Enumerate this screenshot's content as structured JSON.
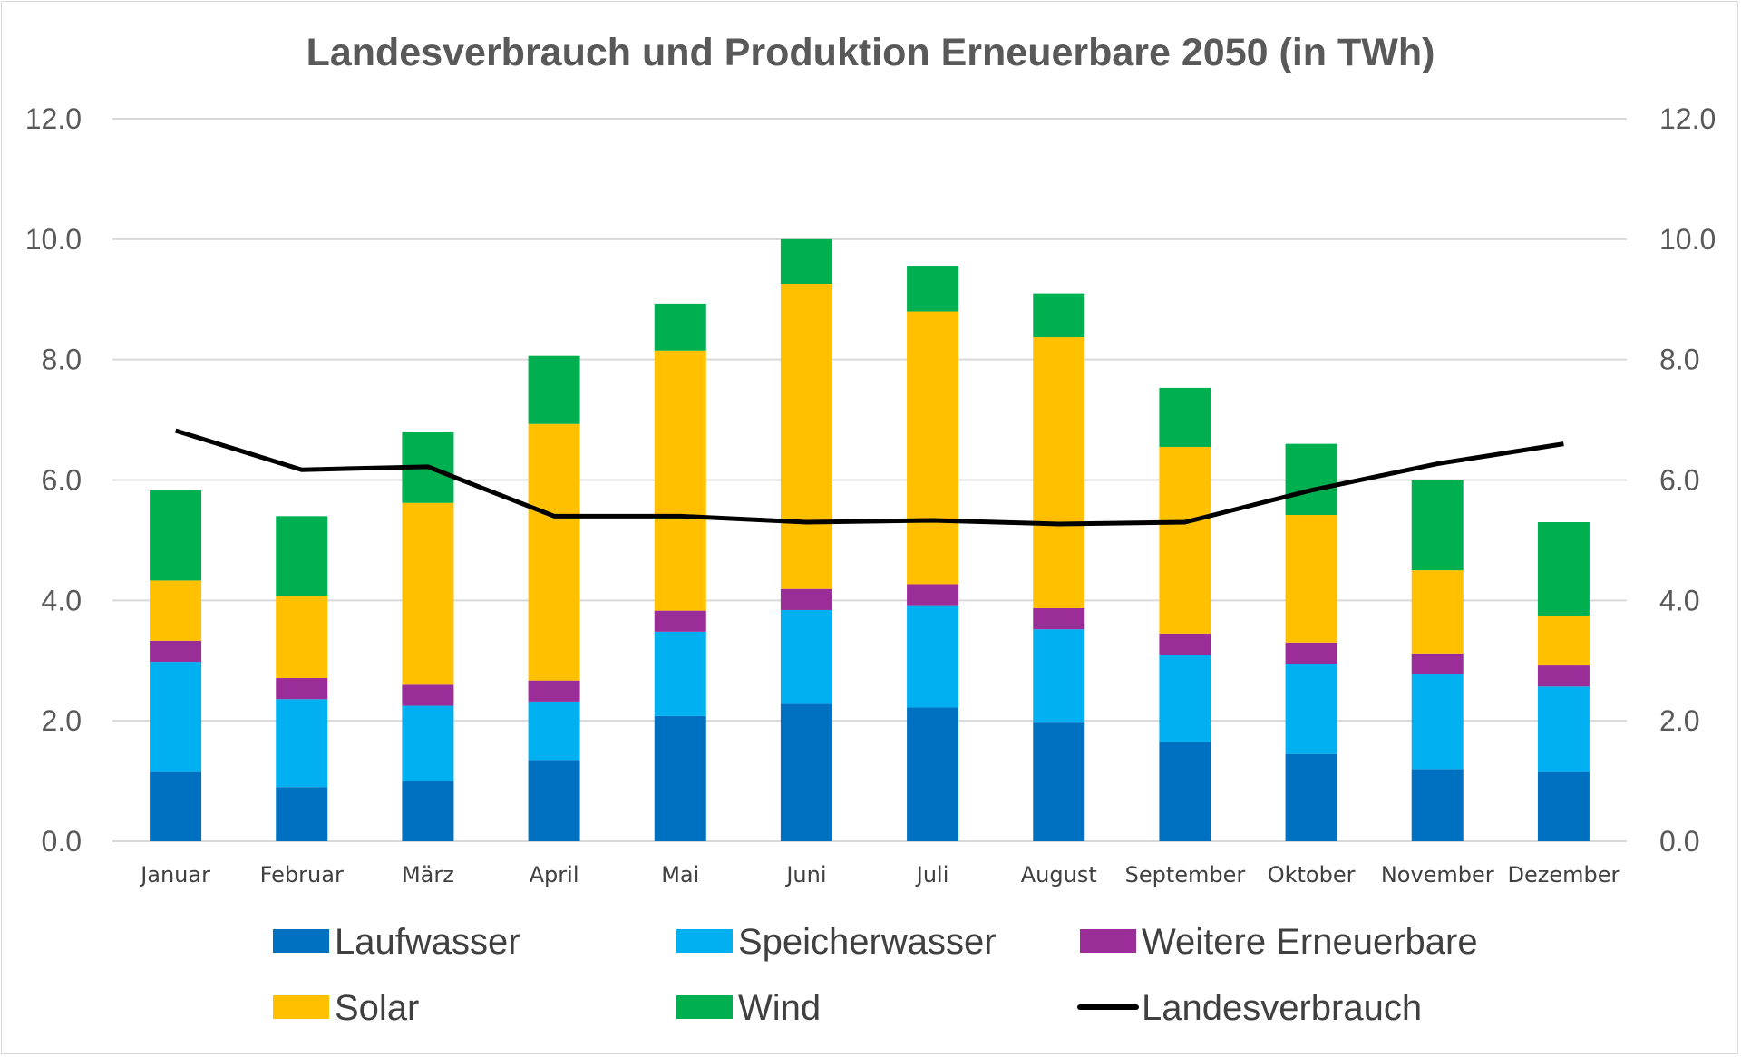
{
  "chart_data": {
    "type": "bar",
    "stacked": true,
    "title": "Landesverbrauch und Produktion Erneuerbare 2050 (in TWh)",
    "categories": [
      "Januar",
      "Februar",
      "März",
      "April",
      "Mai",
      "Juni",
      "Juli",
      "August",
      "September",
      "Oktober",
      "November",
      "Dezember"
    ],
    "ylim": [
      0,
      12
    ],
    "yticks": [
      "0.0",
      "2.0",
      "4.0",
      "6.0",
      "8.0",
      "10.0",
      "12.0"
    ],
    "secondary_ylim": [
      0,
      12
    ],
    "secondary_yticks": [
      "0.0",
      "2.0",
      "4.0",
      "6.0",
      "8.0",
      "10.0",
      "12.0"
    ],
    "grid": true,
    "legend_position": "bottom",
    "series": [
      {
        "name": "Laufwasser",
        "type": "bar",
        "color": "#0070C0",
        "values": [
          1.15,
          0.9,
          1.0,
          1.35,
          2.08,
          2.28,
          2.22,
          1.97,
          1.65,
          1.45,
          1.2,
          1.15
        ]
      },
      {
        "name": "Speicherwasser",
        "type": "bar",
        "color": "#00B0F0",
        "values": [
          1.83,
          1.46,
          1.25,
          0.97,
          1.4,
          1.56,
          1.7,
          1.55,
          1.45,
          1.5,
          1.57,
          1.42
        ]
      },
      {
        "name": "Weitere Erneuerbare",
        "type": "bar",
        "color": "#9B2D98",
        "values": [
          0.35,
          0.35,
          0.35,
          0.35,
          0.35,
          0.35,
          0.35,
          0.35,
          0.35,
          0.35,
          0.35,
          0.35
        ]
      },
      {
        "name": "Solar",
        "type": "bar",
        "color": "#FFC000",
        "values": [
          1.0,
          1.37,
          3.02,
          4.26,
          4.32,
          5.07,
          4.53,
          4.5,
          3.1,
          2.12,
          1.38,
          0.83
        ]
      },
      {
        "name": "Wind",
        "type": "bar",
        "color": "#00B050",
        "values": [
          1.5,
          1.32,
          1.18,
          1.13,
          0.78,
          0.74,
          0.76,
          0.73,
          0.98,
          1.18,
          1.5,
          1.55
        ]
      },
      {
        "name": "Landesverbrauch",
        "type": "line",
        "color": "#000000",
        "values": [
          6.82,
          6.17,
          6.22,
          5.4,
          5.4,
          5.3,
          5.33,
          5.27,
          5.3,
          5.83,
          6.27,
          6.6
        ]
      }
    ]
  }
}
